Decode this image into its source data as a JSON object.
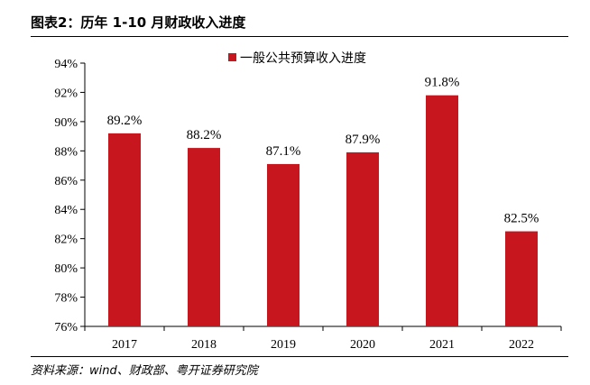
{
  "header": {
    "title": "图表2：历年 1-10 月财政收入进度"
  },
  "footer": {
    "source": "资料来源：wind、财政部、粤开证券研究院"
  },
  "chart_data": {
    "type": "bar",
    "title": "",
    "xlabel": "",
    "ylabel": "",
    "categories": [
      "2017",
      "2018",
      "2019",
      "2020",
      "2021",
      "2022"
    ],
    "series": [
      {
        "name": "一般公共预算收入进度",
        "values": [
          89.2,
          88.2,
          87.1,
          87.9,
          91.8,
          82.5
        ]
      }
    ],
    "data_labels": [
      "89.2%",
      "88.2%",
      "87.1%",
      "87.9%",
      "91.8%",
      "82.5%"
    ],
    "ylim": [
      76,
      94
    ],
    "yticks": [
      76,
      78,
      80,
      82,
      84,
      86,
      88,
      90,
      92,
      94
    ],
    "ytick_labels": [
      "76%",
      "78%",
      "80%",
      "82%",
      "84%",
      "86%",
      "88%",
      "90%",
      "92%",
      "94%"
    ],
    "legend_position": "top-center",
    "grid": false,
    "bar_color": "#C8161E"
  }
}
